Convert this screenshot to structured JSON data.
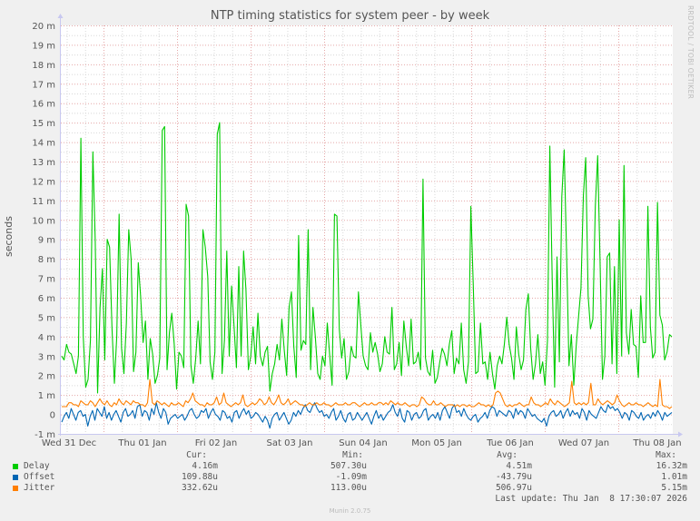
{
  "chart_data": {
    "type": "line",
    "title": "NTP timing statistics for system peer - by week",
    "ylabel": "seconds",
    "xlabel": "",
    "ylim": [
      -1,
      20
    ],
    "y_unit": "m",
    "yticks": [
      "-1 m",
      "0",
      "1 m",
      "2 m",
      "3 m",
      "4 m",
      "5 m",
      "6 m",
      "7 m",
      "8 m",
      "9 m",
      "10 m",
      "11 m",
      "12 m",
      "13 m",
      "14 m",
      "15 m",
      "16 m",
      "17 m",
      "18 m",
      "19 m",
      "20 m"
    ],
    "xticks": [
      "Wed 31 Dec",
      "Thu 01 Jan",
      "Fri 02 Jan",
      "Sat 03 Jan",
      "Sun 04 Jan",
      "Mon 05 Jan",
      "Tue 06 Jan",
      "Wed 07 Jan",
      "Thu 08 Jan"
    ],
    "grid": true,
    "legend_position": "bottom",
    "watermark": "RRDTOOL / TOBI OETIKER",
    "series": [
      {
        "name": "Delay",
        "color": "#00cc00",
        "values": [
          3.0,
          2.8,
          3.6,
          3.2,
          3.1,
          2.6,
          2.1,
          3.0,
          14.2,
          4.0,
          1.4,
          1.8,
          3.8,
          13.5,
          8.9,
          1.1,
          5.5,
          7.5,
          2.8,
          9.0,
          8.6,
          4.5,
          1.6,
          4.0,
          10.3,
          3.4,
          2.1,
          4.7,
          9.5,
          8.0,
          2.2,
          3.2,
          7.8,
          6.0,
          3.7,
          4.8,
          1.8,
          3.9,
          3.1,
          1.6,
          2.0,
          2.9,
          14.6,
          14.8,
          2.3,
          4.2,
          5.2,
          3.6,
          1.3,
          3.2,
          3.0,
          2.4,
          10.8,
          10.2,
          2.5,
          1.6,
          2.9,
          4.8,
          2.6,
          9.5,
          8.6,
          7.1,
          2.7,
          1.8,
          3.2,
          14.4,
          15.0,
          2.1,
          3.8,
          8.4,
          3.0,
          6.6,
          4.6,
          2.4,
          7.6,
          3.0,
          8.4,
          6.4,
          2.3,
          3.0,
          4.5,
          2.6,
          5.2,
          3.0,
          2.5,
          3.2,
          3.5,
          1.2,
          2.1,
          2.6,
          3.6,
          2.8,
          4.9,
          3.3,
          2.0,
          5.5,
          6.3,
          3.5,
          1.9,
          9.2,
          3.3,
          3.8,
          3.6,
          9.5,
          2.3,
          5.5,
          4.0,
          2.1,
          1.8,
          3.0,
          2.5,
          4.7,
          3.0,
          1.5,
          10.3,
          10.2,
          4.4,
          2.9,
          3.9,
          1.8,
          2.2,
          3.5,
          3.0,
          2.9,
          6.3,
          4.6,
          3.0,
          2.5,
          2.3,
          4.2,
          3.2,
          3.7,
          3.1,
          2.2,
          2.6,
          4.0,
          3.2,
          3.1,
          5.5,
          2.3,
          2.6,
          3.7,
          2.0,
          4.8,
          3.5,
          2.5,
          4.9,
          2.6,
          2.7,
          3.2,
          2.3,
          12.1,
          2.9,
          2.2,
          2.0,
          3.3,
          1.6,
          1.9,
          2.7,
          3.4,
          3.1,
          2.5,
          3.6,
          4.3,
          2.1,
          2.9,
          2.6,
          4.7,
          2.3,
          1.6,
          2.7,
          10.7,
          6.6,
          2.1,
          2.2,
          4.7,
          2.6,
          2.7,
          1.8,
          3.2,
          2.1,
          1.3,
          2.5,
          3.0,
          2.6,
          3.6,
          5.0,
          3.6,
          2.9,
          1.8,
          4.5,
          3.1,
          2.3,
          2.8,
          5.4,
          6.2,
          3.4,
          1.8,
          2.6,
          4.1,
          2.1,
          2.7,
          1.5,
          3.8,
          13.8,
          7.0,
          1.4,
          8.1,
          2.7,
          11.2,
          13.6,
          8.4,
          2.5,
          4.1,
          1.5,
          3.5,
          5.0,
          6.5,
          11.2,
          13.2,
          6.1,
          4.4,
          4.9,
          10.7,
          13.3,
          7.9,
          1.8,
          3.0,
          8.1,
          8.3,
          2.6,
          7.6,
          2.1,
          10.0,
          3.0,
          12.8,
          4.2,
          3.1,
          5.4,
          3.6,
          3.5,
          1.9,
          6.1,
          3.7,
          3.7,
          10.7,
          4.5,
          2.9,
          3.2,
          10.9,
          5.1,
          4.6,
          2.8,
          3.2,
          4.1,
          4.0
        ]
      },
      {
        "name": "Offset",
        "color": "#0066b3",
        "values": [
          -0.4,
          -0.1,
          0.1,
          -0.2,
          0.3,
          0.0,
          -0.3,
          0.1,
          0.2,
          -0.1,
          0.0,
          -0.6,
          -0.1,
          0.2,
          -0.3,
          0.3,
          0.1,
          -0.1,
          0.4,
          -0.2,
          0.1,
          -0.3,
          0.0,
          0.2,
          -0.1,
          -0.4,
          0.1,
          0.3,
          -0.1,
          0.0,
          0.2,
          -0.2,
          0.4,
          0.5,
          -0.1,
          0.2,
          0.1,
          -0.3,
          0.3,
          0.0,
          0.6,
          0.1,
          -0.2,
          0.3,
          0.1,
          -0.5,
          -0.2,
          -0.1,
          0.0,
          -0.2,
          -0.1,
          0.0,
          -0.3,
          -0.1,
          0.2,
          0.3,
          0.0,
          -0.2,
          -0.1,
          0.2,
          0.1,
          0.3,
          -0.2,
          0.1,
          0.3,
          0.0,
          -0.1,
          -0.3,
          0.2,
          0.1,
          -0.2,
          -0.1,
          -0.4,
          0.1,
          0.2,
          -0.2,
          0.1,
          0.3,
          0.0,
          0.2,
          -0.2,
          -0.1,
          0.1,
          0.0,
          -0.2,
          -0.4,
          -0.1,
          -0.3,
          -0.7,
          -0.2,
          0.0,
          0.1,
          -0.3,
          -0.1,
          0.1,
          -0.2,
          -0.5,
          -0.3,
          0.1,
          -0.1,
          0.2,
          0.0,
          0.3,
          0.5,
          0.2,
          0.1,
          0.4,
          0.6,
          0.3,
          0.1,
          0.2,
          -0.1,
          0.0,
          -0.2,
          0.1,
          0.3,
          -0.3,
          -0.1,
          0.2,
          -0.2,
          -0.4,
          0.0,
          0.1,
          -0.3,
          -0.2,
          0.1,
          -0.1,
          -0.3,
          -0.1,
          0.1,
          -0.2,
          -0.5,
          -0.1,
          0.2,
          -0.2,
          0.0,
          -0.3,
          -0.1,
          0.1,
          0.2,
          0.5,
          0.1,
          -0.1,
          0.3,
          -0.2,
          -0.4,
          0.2,
          0.1,
          -0.3,
          0.0,
          0.1,
          -0.2,
          -0.1,
          0.2,
          0.3,
          -0.3,
          -0.1,
          0.0,
          -0.2,
          0.1,
          -0.3,
          0.2,
          0.4,
          0.1,
          -0.2,
          0.3,
          0.5,
          0.1,
          0.2,
          -0.1,
          0.3,
          0.0,
          -0.2,
          -0.3,
          -0.1,
          0.0,
          -0.4,
          -0.2,
          -0.1,
          0.1,
          -0.2,
          0.2,
          0.4,
          0.3,
          -0.1,
          0.2,
          0.1,
          0.0,
          -0.1,
          0.2,
          0.1,
          -0.2,
          0.3,
          0.0,
          0.2,
          0.1,
          -0.2,
          0.3,
          0.1,
          -0.1,
          0.0,
          -0.2,
          -0.3,
          -0.4,
          -0.2,
          -0.6,
          -0.1,
          0.1,
          0.2,
          -0.1,
          0.0,
          0.2,
          -0.2,
          0.1,
          0.3,
          -0.1,
          0.2,
          0.0,
          0.1,
          -0.2,
          0.3,
          0.1,
          -0.3,
          0.2,
          0.0,
          -0.1,
          -0.2,
          0.1,
          0.4,
          0.2,
          0.1,
          0.5,
          0.3,
          0.4,
          0.2,
          0.3,
          0.1,
          -0.2,
          0.1,
          0.0,
          -0.3,
          0.2,
          0.1,
          -0.1,
          -0.2,
          0.1,
          -0.3,
          -0.1,
          0.0,
          -0.2,
          0.1,
          -0.1,
          0.2,
          0.0,
          -0.3,
          0.1,
          -0.1,
          0.0,
          0.1
        ]
      },
      {
        "name": "Jitter",
        "color": "#ff7f00",
        "values": [
          0.4,
          0.4,
          0.4,
          0.6,
          0.6,
          0.5,
          0.5,
          0.4,
          0.7,
          0.6,
          0.5,
          0.5,
          0.7,
          0.6,
          0.4,
          0.6,
          0.8,
          0.6,
          0.5,
          0.7,
          0.5,
          0.4,
          0.6,
          0.5,
          0.8,
          0.6,
          0.5,
          0.7,
          0.6,
          0.5,
          0.7,
          0.6,
          0.6,
          0.5,
          0.5,
          0.4,
          0.6,
          1.8,
          0.6,
          0.5,
          0.7,
          0.6,
          0.5,
          0.6,
          0.5,
          0.4,
          0.6,
          0.5,
          0.5,
          0.6,
          0.5,
          0.4,
          0.7,
          0.6,
          0.8,
          1.1,
          0.7,
          0.6,
          0.5,
          0.5,
          0.4,
          0.6,
          0.5,
          0.5,
          0.6,
          0.9,
          0.5,
          0.6,
          1.1,
          0.6,
          0.5,
          0.4,
          0.5,
          0.6,
          0.5,
          0.6,
          1.0,
          0.5,
          0.4,
          0.5,
          0.6,
          0.5,
          0.6,
          0.8,
          0.7,
          0.5,
          0.6,
          0.9,
          0.6,
          0.5,
          0.7,
          1.0,
          0.6,
          0.5,
          0.6,
          0.8,
          0.5,
          0.6,
          0.7,
          0.6,
          0.5,
          0.5,
          0.4,
          0.5,
          0.6,
          0.5,
          0.5,
          0.6,
          0.5,
          0.5,
          0.6,
          0.5,
          0.5,
          0.4,
          0.5,
          0.6,
          0.5,
          0.5,
          0.5,
          0.6,
          0.5,
          0.5,
          0.6,
          0.6,
          0.5,
          0.4,
          0.5,
          0.6,
          0.5,
          0.5,
          0.6,
          0.5,
          0.5,
          0.6,
          0.6,
          0.5,
          0.6,
          0.5,
          0.7,
          0.6,
          0.5,
          0.6,
          0.5,
          0.5,
          0.6,
          0.5,
          0.4,
          0.5,
          0.5,
          0.4,
          0.5,
          0.9,
          0.8,
          0.6,
          0.5,
          0.5,
          0.7,
          0.5,
          0.5,
          0.6,
          0.5,
          0.4,
          0.5,
          0.5,
          0.5,
          0.4,
          0.5,
          0.4,
          0.5,
          0.5,
          0.4,
          0.5,
          0.4,
          0.4,
          0.5,
          0.6,
          0.5,
          0.5,
          0.4,
          0.5,
          0.4,
          0.5,
          1.1,
          1.2,
          1.1,
          0.8,
          0.5,
          0.4,
          0.5,
          0.4,
          0.5,
          0.5,
          0.6,
          0.5,
          0.4,
          0.5,
          0.5,
          0.9,
          0.6,
          0.5,
          0.5,
          0.4,
          0.5,
          0.6,
          0.5,
          0.8,
          0.6,
          0.5,
          0.7,
          0.6,
          0.5,
          0.4,
          0.5,
          0.6,
          1.7,
          0.6,
          0.5,
          0.6,
          0.5,
          0.6,
          0.5,
          0.6,
          1.6,
          0.5,
          0.5,
          0.8,
          0.6,
          0.5,
          0.6,
          0.7,
          0.6,
          0.5,
          0.6,
          1.0,
          0.7,
          0.5,
          0.4,
          0.5,
          0.6,
          0.5,
          0.5,
          0.6,
          0.5,
          0.5,
          0.4,
          0.5,
          0.6,
          0.5,
          0.4,
          0.5,
          0.4,
          1.8,
          0.5,
          0.4,
          0.4,
          0.3,
          0.4
        ]
      }
    ]
  },
  "legend": {
    "headers": {
      "cur": "Cur:",
      "min": "Min:",
      "avg": "Avg:",
      "max": "Max:"
    },
    "rows": [
      {
        "name": "Delay",
        "color": "#00cc00",
        "cur": "4.16m",
        "min": "507.30u",
        "avg": "4.51m",
        "max": "16.32m"
      },
      {
        "name": "Offset",
        "color": "#0066b3",
        "cur": "109.88u",
        "min": "-1.09m",
        "avg": "-43.79u",
        "max": "1.01m"
      },
      {
        "name": "Jitter",
        "color": "#ff7f00",
        "cur": "332.62u",
        "min": "113.00u",
        "avg": "506.97u",
        "max": "5.15m"
      }
    ],
    "last_update": "Last update: Thu Jan  8 17:30:07 2026"
  },
  "footer": "Munin 2.0.75"
}
